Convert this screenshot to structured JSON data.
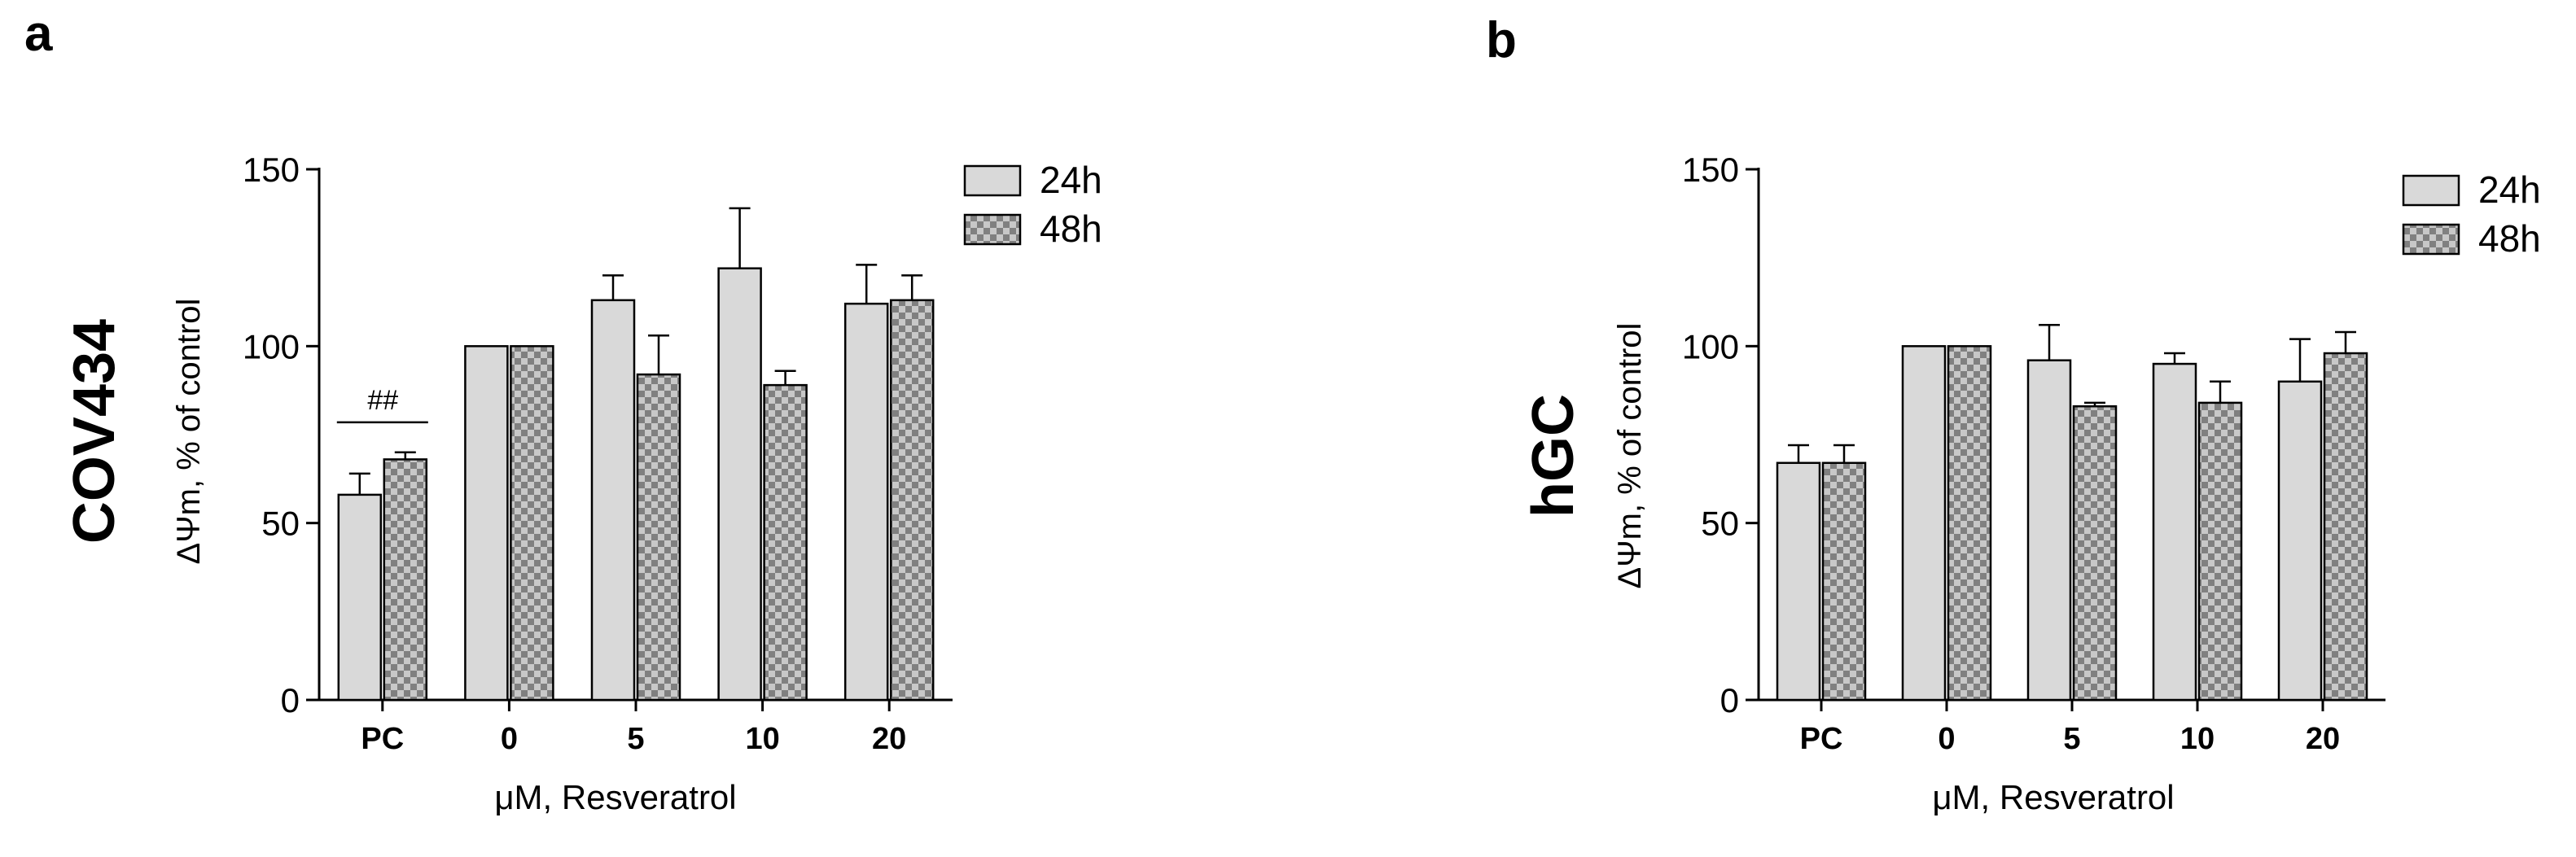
{
  "colors": {
    "bar_24h": "#d9d9d9",
    "pattern_dark": "#808080",
    "pattern_light": "#c8c8c8",
    "axis": "#000000"
  },
  "chart_data": [
    {
      "type": "bar",
      "panel_letter": "a",
      "cell_title": "COV434",
      "ylabel": "ΔΨm, % of control",
      "xlabel": "μM, Resveratrol",
      "categories": [
        "PC",
        "0",
        "5",
        "10",
        "20"
      ],
      "ylim": [
        0,
        150
      ],
      "yticks": [
        "0",
        "50",
        "100",
        "150"
      ],
      "legend_position": "top-right",
      "series": [
        {
          "name": "24h",
          "pattern": "solid",
          "values": [
            58,
            100,
            113,
            122,
            112
          ],
          "errors": [
            6,
            0,
            7,
            17,
            11
          ]
        },
        {
          "name": "48h",
          "pattern": "checker",
          "values": [
            68,
            100,
            92,
            89,
            113
          ],
          "errors": [
            2,
            0,
            11,
            4,
            7
          ]
        }
      ],
      "annotation": {
        "text": "##",
        "category": "PC",
        "y": 84
      }
    },
    {
      "type": "bar",
      "panel_letter": "b",
      "cell_title": "hGC",
      "ylabel": "ΔΨm, % of control",
      "xlabel": "μM, Resveratrol",
      "categories": [
        "PC",
        "0",
        "5",
        "10",
        "20"
      ],
      "ylim": [
        0,
        150
      ],
      "yticks": [
        "0",
        "50",
        "100",
        "150"
      ],
      "legend_position": "top-right",
      "series": [
        {
          "name": "24h",
          "pattern": "solid",
          "values": [
            67,
            100,
            96,
            95,
            90
          ],
          "errors": [
            5,
            0,
            10,
            3,
            12
          ]
        },
        {
          "name": "48h",
          "pattern": "checker",
          "values": [
            67,
            100,
            83,
            84,
            98
          ],
          "errors": [
            5,
            0,
            1,
            6,
            6
          ]
        }
      ]
    }
  ]
}
